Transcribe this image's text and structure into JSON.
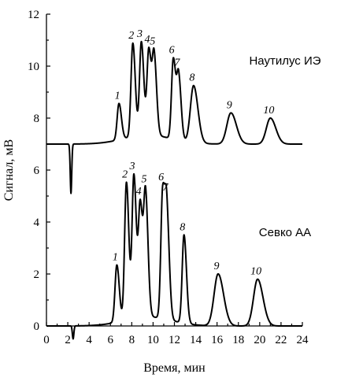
{
  "chart_data": {
    "type": "line",
    "title": "",
    "xlabel": "Время, мин",
    "ylabel": "Сигнал, мВ",
    "xlim": [
      0,
      24
    ],
    "ylim": [
      0,
      12
    ],
    "x_ticks": [
      "0",
      "2",
      "4",
      "6",
      "8",
      "10",
      "12",
      "14",
      "16",
      "18",
      "20",
      "22",
      "24"
    ],
    "y_ticks": [
      "0",
      "2",
      "4",
      "6",
      "8",
      "10",
      "12"
    ],
    "grid": false,
    "series": [
      {
        "name": "Наутилус ИЭ",
        "baseline": 7.0,
        "dip": {
          "x": 2.3,
          "y": 5.1
        },
        "peaks": [
          {
            "label": "1",
            "x": 6.8,
            "y": 8.4
          },
          {
            "label": "2",
            "x": 8.1,
            "y": 10.6
          },
          {
            "label": "3",
            "x": 8.9,
            "y": 10.6
          },
          {
            "label": "4",
            "x": 9.6,
            "y": 10.3
          },
          {
            "label": "5",
            "x": 10.1,
            "y": 10.0
          },
          {
            "label": "6",
            "x": 11.9,
            "y": 10.1
          },
          {
            "label": "7",
            "x": 12.4,
            "y": 9.4
          },
          {
            "label": "8",
            "x": 13.8,
            "y": 9.2
          },
          {
            "label": "9",
            "x": 17.3,
            "y": 8.2
          },
          {
            "label": "10",
            "x": 21.0,
            "y": 8.0
          }
        ]
      },
      {
        "name": "Севко АА",
        "baseline": 0.0,
        "dip": {
          "x": 2.5,
          "y": -0.5
        },
        "peaks": [
          {
            "label": "1",
            "x": 6.6,
            "y": 2.2
          },
          {
            "label": "2",
            "x": 7.5,
            "y": 5.3
          },
          {
            "label": "3",
            "x": 8.2,
            "y": 5.5
          },
          {
            "label": "4",
            "x": 8.8,
            "y": 4.3
          },
          {
            "label": "5",
            "x": 9.3,
            "y": 4.6
          },
          {
            "label": "6",
            "x": 10.9,
            "y": 4.9
          },
          {
            "label": "7",
            "x": 11.3,
            "y": 3.7
          },
          {
            "label": "8",
            "x": 12.9,
            "y": 3.4
          },
          {
            "label": "9",
            "x": 16.1,
            "y": 2.0
          },
          {
            "label": "10",
            "x": 19.8,
            "y": 1.8
          }
        ]
      }
    ]
  }
}
